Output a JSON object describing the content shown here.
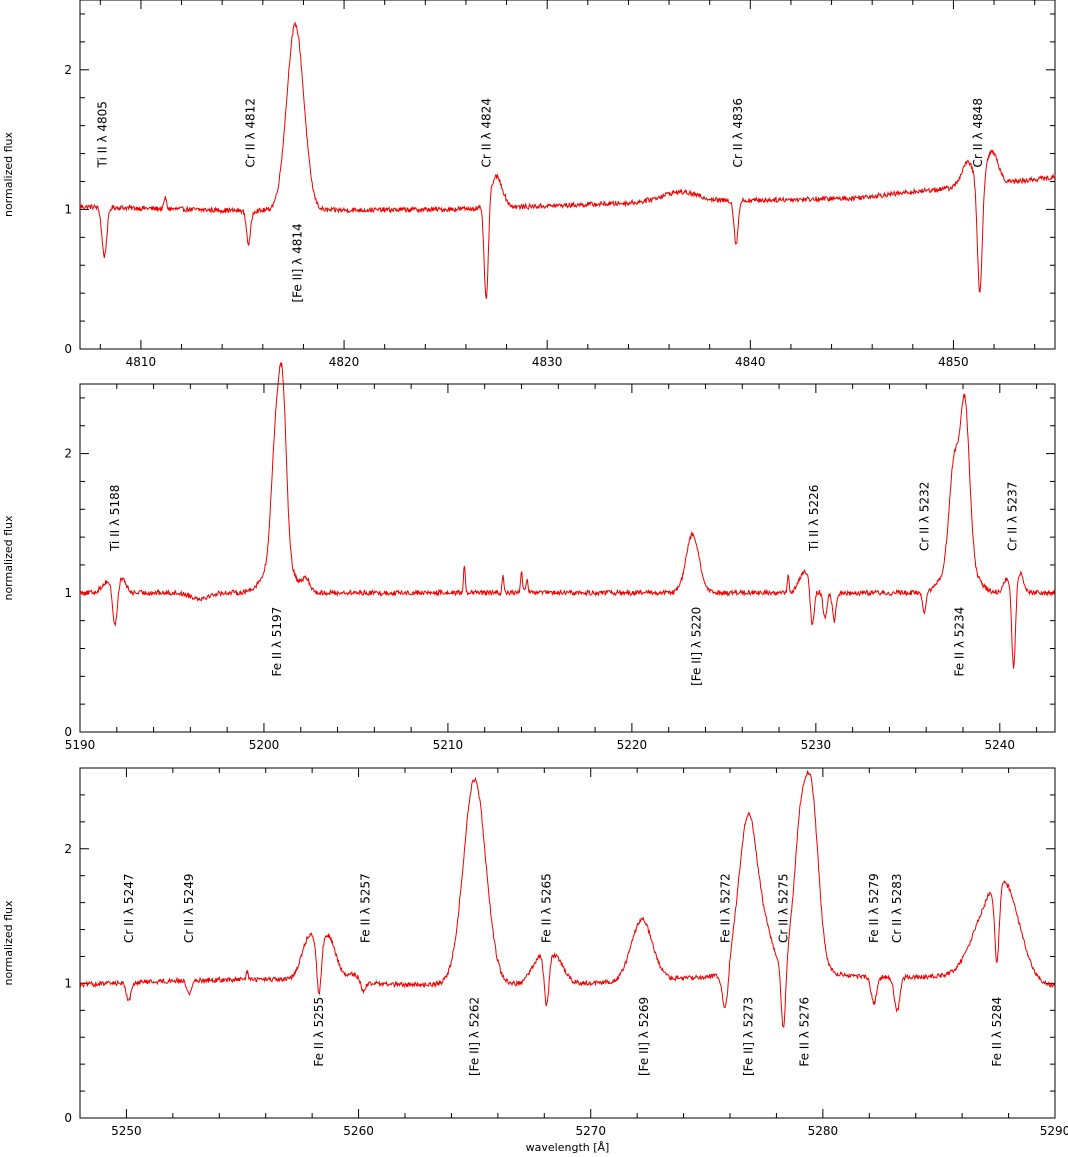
{
  "figure": {
    "xlabel": "wavelength [Å]",
    "ylabel": "normalized flux",
    "line_color": "#ee0000"
  },
  "chart_data": [
    {
      "type": "line",
      "xlabel": "",
      "ylabel": "normalized flux",
      "xlim": [
        4807,
        4855
      ],
      "ylim": [
        0,
        2.5
      ],
      "xticks": [
        4810,
        4820,
        4830,
        4840,
        4850
      ],
      "yticks": [
        0,
        1,
        2
      ],
      "baseline": [
        [
          4807,
          1.02
        ],
        [
          4815,
          0.99
        ],
        [
          4825,
          1.0
        ],
        [
          4835,
          1.05
        ],
        [
          4845,
          1.08
        ],
        [
          4855,
          1.23
        ]
      ],
      "features": [
        {
          "x": 4808.2,
          "d": -0.35,
          "w": 0.12
        },
        {
          "x": 4811.2,
          "d": 0.08,
          "w": 0.06
        },
        {
          "x": 4815.3,
          "d": -0.24,
          "w": 0.1
        },
        {
          "x": 4817.6,
          "d": 1.33,
          "w": 0.42
        },
        {
          "x": 4827.0,
          "d": -0.71,
          "w": 0.1
        },
        {
          "x": 4827.5,
          "d": 0.22,
          "w": 0.3
        },
        {
          "x": 4836.5,
          "d": 0.07,
          "w": 0.9
        },
        {
          "x": 4839.3,
          "d": -0.31,
          "w": 0.1
        },
        {
          "x": 4850.7,
          "d": 0.17,
          "w": 0.3
        },
        {
          "x": 4851.3,
          "d": -0.82,
          "w": 0.12
        },
        {
          "x": 4851.9,
          "d": 0.23,
          "w": 0.3
        }
      ],
      "labels": [
        {
          "text": "Ti II λ 4805",
          "x": 4808.1,
          "pos": "above"
        },
        {
          "text": "Cr II λ 4812",
          "x": 4815.4,
          "pos": "above"
        },
        {
          "text": "[Fe II] λ 4814",
          "x": 4817.7,
          "pos": "below"
        },
        {
          "text": "Cr II λ 4824",
          "x": 4827.0,
          "pos": "above"
        },
        {
          "text": "Cr II λ 4836",
          "x": 4839.4,
          "pos": "above"
        },
        {
          "text": "Cr II λ 4848",
          "x": 4851.2,
          "pos": "above"
        }
      ]
    },
    {
      "type": "line",
      "xlabel": "",
      "ylabel": "normalized flux",
      "xlim": [
        5190,
        5243
      ],
      "ylim": [
        0,
        2.5
      ],
      "xticks": [
        5190,
        5200,
        5210,
        5220,
        5230,
        5240
      ],
      "yticks": [
        0,
        1,
        2
      ],
      "baseline": [
        [
          5190,
          1.0
        ],
        [
          5200,
          1.0
        ],
        [
          5215,
          1.0
        ],
        [
          5230,
          1.0
        ],
        [
          5243,
          1.0
        ]
      ],
      "features": [
        {
          "x": 5191.5,
          "d": 0.08,
          "w": 0.3
        },
        {
          "x": 5191.9,
          "d": -0.28,
          "w": 0.12
        },
        {
          "x": 5192.3,
          "d": 0.1,
          "w": 0.2
        },
        {
          "x": 5196.5,
          "d": -0.04,
          "w": 0.5
        },
        {
          "x": 5200.6,
          "d": 0.75,
          "w": 0.22
        },
        {
          "x": 5201.0,
          "d": 1.22,
          "w": 0.22
        },
        {
          "x": 5200.8,
          "d": 0.25,
          "w": 0.7
        },
        {
          "x": 5202.3,
          "d": 0.08,
          "w": 0.2
        },
        {
          "x": 5210.9,
          "d": 0.2,
          "w": 0.05
        },
        {
          "x": 5213.0,
          "d": 0.12,
          "w": 0.05
        },
        {
          "x": 5214.0,
          "d": 0.14,
          "w": 0.06
        },
        {
          "x": 5214.3,
          "d": 0.1,
          "w": 0.05
        },
        {
          "x": 5223.3,
          "d": 0.42,
          "w": 0.35
        },
        {
          "x": 5228.5,
          "d": 0.12,
          "w": 0.05
        },
        {
          "x": 5229.4,
          "d": 0.15,
          "w": 0.3
        },
        {
          "x": 5229.8,
          "d": -0.3,
          "w": 0.1
        },
        {
          "x": 5230.5,
          "d": -0.18,
          "w": 0.1
        },
        {
          "x": 5231.0,
          "d": -0.2,
          "w": 0.1
        },
        {
          "x": 5235.9,
          "d": -0.14,
          "w": 0.1
        },
        {
          "x": 5237.5,
          "d": 0.65,
          "w": 0.25
        },
        {
          "x": 5238.1,
          "d": 1.1,
          "w": 0.25
        },
        {
          "x": 5237.8,
          "d": 0.3,
          "w": 0.7
        },
        {
          "x": 5240.4,
          "d": 0.1,
          "w": 0.2
        },
        {
          "x": 5240.75,
          "d": -0.58,
          "w": 0.1
        },
        {
          "x": 5241.1,
          "d": 0.14,
          "w": 0.2
        }
      ],
      "labels": [
        {
          "text": "Ti II λ 5188",
          "x": 5191.9,
          "pos": "above"
        },
        {
          "text": "Fe II λ 5197",
          "x": 5200.7,
          "pos": "below"
        },
        {
          "text": "[Fe II] λ 5220",
          "x": 5223.5,
          "pos": "below"
        },
        {
          "text": "Ti II λ 5226",
          "x": 5229.9,
          "pos": "above"
        },
        {
          "text": "Cr II λ 5232",
          "x": 5235.9,
          "pos": "above"
        },
        {
          "text": "Fe II λ 5234",
          "x": 5237.8,
          "pos": "below"
        },
        {
          "text": "Cr II λ 5237",
          "x": 5240.7,
          "pos": "above"
        }
      ]
    },
    {
      "type": "line",
      "xlabel": "wavelength [Å]",
      "ylabel": "normalized flux",
      "xlim": [
        5248,
        5290
      ],
      "ylim": [
        0,
        2.6
      ],
      "xticks": [
        5250,
        5260,
        5270,
        5280,
        5290
      ],
      "yticks": [
        0,
        1,
        2
      ],
      "baseline": [
        [
          5248,
          0.99
        ],
        [
          5252,
          1.02
        ],
        [
          5256,
          1.03
        ],
        [
          5262,
          0.99
        ],
        [
          5270,
          1.0
        ],
        [
          5275,
          1.05
        ],
        [
          5282,
          1.05
        ],
        [
          5286,
          1.05
        ],
        [
          5290,
          0.98
        ]
      ],
      "features": [
        {
          "x": 5250.1,
          "d": -0.13,
          "w": 0.1
        },
        {
          "x": 5252.7,
          "d": -0.1,
          "w": 0.1
        },
        {
          "x": 5255.2,
          "d": 0.06,
          "w": 0.05
        },
        {
          "x": 5257.9,
          "d": 0.32,
          "w": 0.35
        },
        {
          "x": 5258.3,
          "d": -0.42,
          "w": 0.1
        },
        {
          "x": 5258.7,
          "d": 0.32,
          "w": 0.35
        },
        {
          "x": 5259.8,
          "d": 0.06,
          "w": 0.25
        },
        {
          "x": 5260.2,
          "d": -0.07,
          "w": 0.1
        },
        {
          "x": 5265.0,
          "d": 1.52,
          "w": 0.48
        },
        {
          "x": 5267.8,
          "d": 0.18,
          "w": 0.35
        },
        {
          "x": 5268.1,
          "d": -0.38,
          "w": 0.1
        },
        {
          "x": 5268.5,
          "d": 0.18,
          "w": 0.35
        },
        {
          "x": 5272.2,
          "d": 0.45,
          "w": 0.45
        },
        {
          "x": 5275.8,
          "d": -0.3,
          "w": 0.12
        },
        {
          "x": 5276.8,
          "d": 1.2,
          "w": 0.42
        },
        {
          "x": 5277.6,
          "d": 0.15,
          "w": 0.25
        },
        {
          "x": 5278.3,
          "d": -0.55,
          "w": 0.1
        },
        {
          "x": 5279.0,
          "d": 0.73,
          "w": 0.25
        },
        {
          "x": 5279.5,
          "d": 1.22,
          "w": 0.3
        },
        {
          "x": 5278.9,
          "d": 0.2,
          "w": 0.8
        },
        {
          "x": 5282.2,
          "d": -0.2,
          "w": 0.12
        },
        {
          "x": 5283.2,
          "d": -0.25,
          "w": 0.12
        },
        {
          "x": 5287.1,
          "d": 0.45,
          "w": 0.7
        },
        {
          "x": 5288.0,
          "d": 0.5,
          "w": 0.6
        },
        {
          "x": 5287.5,
          "d": -0.6,
          "w": 0.1
        }
      ],
      "labels": [
        {
          "text": "Cr II λ 5247",
          "x": 5250.1,
          "pos": "above"
        },
        {
          "text": "Cr II λ 5249",
          "x": 5252.7,
          "pos": "above"
        },
        {
          "text": "Fe II λ 5255",
          "x": 5258.3,
          "pos": "below"
        },
        {
          "text": "Fe II λ 5257",
          "x": 5260.3,
          "pos": "above"
        },
        {
          "text": "[Fe II] λ 5262",
          "x": 5265.0,
          "pos": "below"
        },
        {
          "text": "Fe II λ 5265",
          "x": 5268.1,
          "pos": "above"
        },
        {
          "text": "[Fe II] λ 5269",
          "x": 5272.3,
          "pos": "below"
        },
        {
          "text": "Fe II λ 5272",
          "x": 5275.8,
          "pos": "above"
        },
        {
          "text": "[Fe II] λ 5273",
          "x": 5276.8,
          "pos": "below"
        },
        {
          "text": "Cr II λ 5275",
          "x": 5278.3,
          "pos": "above"
        },
        {
          "text": "Fe II λ 5276",
          "x": 5279.2,
          "pos": "below"
        },
        {
          "text": "Fe II λ 5279",
          "x": 5282.2,
          "pos": "above"
        },
        {
          "text": "Cr II λ 5283",
          "x": 5283.2,
          "pos": "above"
        },
        {
          "text": "Fe II λ 5284",
          "x": 5287.5,
          "pos": "below"
        }
      ]
    }
  ]
}
